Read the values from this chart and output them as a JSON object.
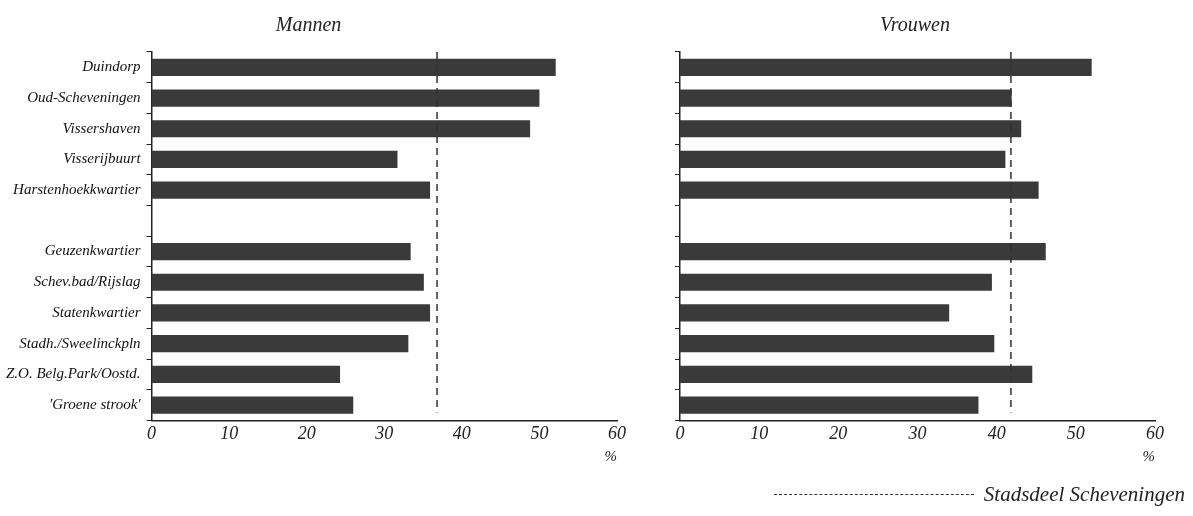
{
  "chart_data": [
    {
      "type": "bar",
      "orientation": "horizontal",
      "title": "Mannen",
      "xlabel": "%",
      "categories": [
        "Duindorp",
        "Oud-Scheveningen",
        "Vissershaven",
        "Visserijbuurt",
        "Harstenhoekkwartier",
        null,
        "Geuzenkwartier",
        "Schev.bad/Rijslag",
        "Statenkwartier",
        "Stadh./Sweelinckpln",
        "Z.O. Belg.Park/Oostd.",
        "'Groene strook'"
      ],
      "values": [
        52.1,
        50.0,
        48.8,
        31.7,
        35.9,
        null,
        33.4,
        35.1,
        35.9,
        33.1,
        24.3,
        26.0
      ],
      "color": "#3a3a3a",
      "xlim": [
        0,
        60
      ],
      "xticks": [
        0,
        10,
        20,
        30,
        40,
        50,
        60
      ],
      "grid": false,
      "ref_lines": [
        {
          "axis": "x",
          "value": 36.8,
          "line_style": "dashed",
          "color": "#333333"
        }
      ]
    },
    {
      "type": "bar",
      "orientation": "horizontal",
      "title": "Vrouwen",
      "xlabel": "%",
      "categories": [
        null,
        null,
        null,
        null,
        null,
        null,
        null,
        null,
        null,
        null,
        null,
        null
      ],
      "values": [
        52.0,
        41.9,
        43.1,
        41.1,
        45.3,
        null,
        46.2,
        39.4,
        34.0,
        39.7,
        44.5,
        37.7
      ],
      "color": "#3a3a3a",
      "xlim": [
        0,
        60
      ],
      "xticks": [
        0,
        10,
        20,
        30,
        40,
        50,
        60
      ],
      "grid": false,
      "tick_labels": "x",
      "ref_lines": [
        {
          "axis": "x",
          "value": 41.8,
          "line_style": "dashed",
          "color": "#333333",
          "label": "Stadsdeel Scheveningen"
        }
      ]
    }
  ]
}
